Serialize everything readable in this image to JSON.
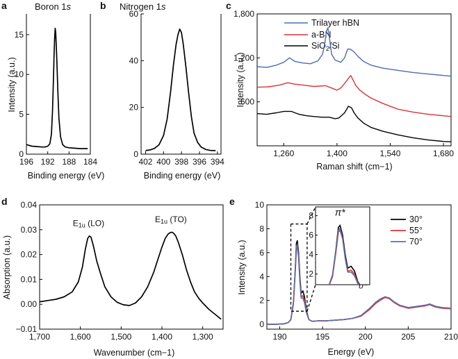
{
  "figure": {
    "panel_labels": [
      "a",
      "b",
      "c",
      "d",
      "e"
    ]
  },
  "chart_data": [
    {
      "panel": "a",
      "type": "line",
      "title_text": "Boron 1",
      "title_ital": "s",
      "xlabel": "Binding energy (eV)",
      "ylabel": "Intensity (a.u.)",
      "xlim": [
        196,
        184
      ],
      "ylim": [
        0,
        17.6
      ],
      "xticks": [
        196,
        192,
        188,
        184
      ],
      "xtick_labels": [
        "196",
        "192",
        "188",
        "184"
      ],
      "yticks": [
        0,
        5,
        10,
        15
      ],
      "ytick_labels": [
        "0",
        "5",
        "10",
        "15"
      ],
      "series": [
        {
          "name": "Boron 1s",
          "color": "#000000",
          "x": [
            196,
            195,
            194,
            193,
            192.5,
            192,
            191.6,
            191.3,
            191.1,
            190.9,
            190.8,
            190.7,
            190.6,
            190.5,
            190.3,
            190.1,
            189.9,
            189.6,
            189.2,
            188.7,
            188,
            187,
            186,
            185,
            184.5
          ],
          "y": [
            1.2,
            1.0,
            0.95,
            0.9,
            0.9,
            1.0,
            1.3,
            2.5,
            5.5,
            10,
            12.8,
            14.5,
            15.8,
            15.2,
            12,
            8,
            4.5,
            2.2,
            1.2,
            0.9,
            0.8,
            0.75,
            0.7,
            0.7,
            0.7
          ]
        }
      ]
    },
    {
      "panel": "b",
      "type": "line",
      "title_text": "Nitrogen 1",
      "title_ital": "s",
      "xlabel": "Binding energy (eV)",
      "ylabel": "",
      "xlim": [
        402.5,
        393.6
      ],
      "ylim": [
        0,
        60
      ],
      "xticks": [
        402,
        400,
        398,
        396,
        394
      ],
      "xtick_labels": [
        "402",
        "400",
        "398",
        "396",
        "394"
      ],
      "yticks": [
        0,
        20,
        40,
        60
      ],
      "ytick_labels": [
        "0",
        "20",
        "40",
        "60"
      ],
      "series": [
        {
          "name": "Nitrogen 1s",
          "color": "#000000",
          "x": [
            402,
            401.5,
            401,
            400.5,
            400,
            399.6,
            399.2,
            398.9,
            398.6,
            398.4,
            398.2,
            398,
            397.8,
            397.5,
            397.2,
            396.9,
            396.6,
            396.2,
            395.8,
            395.3,
            394.8,
            394.2
          ],
          "y": [
            1.5,
            1.8,
            2.5,
            4,
            8,
            15,
            27,
            38,
            47,
            51,
            53.5,
            52,
            47,
            37,
            26,
            16,
            9,
            5,
            3,
            2,
            1.6,
            1.5
          ]
        }
      ]
    },
    {
      "panel": "c",
      "type": "line",
      "xlabel": "Raman shift (cm−1)",
      "ylabel": "Intensity (a.u.)",
      "xlim": [
        1190,
        1700
      ],
      "ylim": [
        0,
        1800
      ],
      "xticks": [
        1260,
        1400,
        1540,
        1680
      ],
      "xtick_labels": [
        "1,260",
        "1,400",
        "1,540",
        "1,680"
      ],
      "yticks": [
        600,
        1200,
        1800
      ],
      "ytick_labels": [
        "600",
        "1,200",
        "1,800"
      ],
      "legend": {
        "position": "top-left",
        "labels": [
          "Trilayer hBN",
          "a-BN",
          "SiO",
          "2",
          "/Si"
        ]
      },
      "series": [
        {
          "name": "Trilayer hBN",
          "color": "#4a6bb5",
          "x": [
            1190,
            1215,
            1240,
            1260,
            1275,
            1290,
            1310,
            1330,
            1350,
            1362,
            1368,
            1372,
            1376,
            1380,
            1386,
            1395,
            1410,
            1420,
            1428,
            1435,
            1445,
            1455,
            1470,
            1490,
            1520,
            1560,
            1600,
            1640,
            1680,
            1700
          ],
          "y": [
            1080,
            1070,
            1100,
            1140,
            1200,
            1150,
            1130,
            1120,
            1160,
            1250,
            1400,
            1560,
            1610,
            1480,
            1250,
            1170,
            1140,
            1200,
            1320,
            1320,
            1280,
            1220,
            1150,
            1100,
            1060,
            1030,
            1000,
            980,
            960,
            950
          ]
        },
        {
          "name": "a-BN",
          "color": "#d93338",
          "x": [
            1190,
            1220,
            1250,
            1270,
            1290,
            1310,
            1340,
            1370,
            1390,
            1400,
            1410,
            1420,
            1430,
            1436,
            1442,
            1450,
            1460,
            1475,
            1490,
            1520,
            1560,
            1600,
            1640,
            1680,
            1700
          ],
          "y": [
            800,
            805,
            830,
            860,
            840,
            830,
            810,
            820,
            780,
            760,
            790,
            850,
            920,
            960,
            900,
            820,
            760,
            700,
            650,
            580,
            500,
            460,
            430,
            410,
            400
          ]
        },
        {
          "name": "SiO2/Si",
          "color": "#000000",
          "x": [
            1190,
            1215,
            1240,
            1260,
            1280,
            1300,
            1320,
            1340,
            1360,
            1380,
            1395,
            1405,
            1420,
            1430,
            1438,
            1445,
            1455,
            1470,
            1490,
            1520,
            1560,
            1600,
            1640,
            1680,
            1700
          ],
          "y": [
            440,
            430,
            450,
            470,
            470,
            430,
            410,
            400,
            390,
            390,
            370,
            380,
            450,
            540,
            520,
            450,
            380,
            310,
            250,
            200,
            150,
            110,
            80,
            60,
            55
          ]
        }
      ]
    },
    {
      "panel": "d",
      "type": "line",
      "xlabel": "Wavenumber (cm−1)",
      "ylabel": "Absorption (a.u.)",
      "xlim": [
        1700,
        1250
      ],
      "ylim": [
        -0.01,
        0.04
      ],
      "xticks": [
        1700,
        1600,
        1500,
        1400,
        1300
      ],
      "xtick_labels": [
        "1,700",
        "1,600",
        "1,500",
        "1,400",
        "1,300"
      ],
      "yticks": [
        -0.01,
        0,
        0.01,
        0.02,
        0.03,
        0.04
      ],
      "ytick_labels": [
        "−0.01",
        "0.00",
        "0.01",
        "0.02",
        "0.03",
        "0.04"
      ],
      "annotations": [
        {
          "label": "lo",
          "pre": "E",
          "sub": "1u",
          "post": " (LO)",
          "x": 1580,
          "y": 0.0315
        },
        {
          "label": "to",
          "pre": "E",
          "sub": "1u",
          "post": " (TO)",
          "x": 1378,
          "y": 0.033
        }
      ],
      "series": [
        {
          "name": "Absorption",
          "color": "#000000",
          "x": [
            1700,
            1680,
            1660,
            1640,
            1620,
            1605,
            1595,
            1588,
            1582,
            1578,
            1574,
            1568,
            1560,
            1550,
            1540,
            1525,
            1510,
            1495,
            1480,
            1465,
            1450,
            1435,
            1420,
            1410,
            1400,
            1392,
            1385,
            1380,
            1376,
            1372,
            1366,
            1360,
            1350,
            1340,
            1330,
            1320,
            1310,
            1300,
            1285,
            1270,
            1255
          ],
          "y": [
            0.001,
            0.0015,
            0.002,
            0.003,
            0.005,
            0.009,
            0.015,
            0.022,
            0.0265,
            0.0275,
            0.027,
            0.0235,
            0.0175,
            0.012,
            0.007,
            0.003,
            0.0008,
            -0.0002,
            -0.0005,
            0.0005,
            0.003,
            0.007,
            0.013,
            0.018,
            0.023,
            0.0265,
            0.0282,
            0.0288,
            0.029,
            0.0287,
            0.0275,
            0.025,
            0.02,
            0.014,
            0.009,
            0.005,
            0.0025,
            0.0005,
            -0.002,
            -0.004,
            -0.006
          ]
        }
      ]
    },
    {
      "panel": "e",
      "type": "line",
      "xlabel": "Energy (eV)",
      "ylabel": "Intensity (a.u.)",
      "xlim": [
        188.5,
        210
      ],
      "ylim": [
        -0.4,
        10
      ],
      "xticks": [
        190,
        195,
        200,
        205,
        210
      ],
      "xtick_labels": [
        "190",
        "195",
        "200",
        "205",
        "210"
      ],
      "yticks": [
        0,
        2,
        4,
        6,
        8,
        10
      ],
      "ytick_labels": [
        "0",
        "2",
        "4",
        "6",
        "8",
        "10"
      ],
      "legend": {
        "position": "top-right",
        "labels": [
          "30°",
          "55°",
          "70°"
        ]
      },
      "annotations": [
        {
          "label": "pi_star",
          "text": "π*",
          "x": 192.05,
          "y": 8.0
        },
        {
          "label": "sigma_star",
          "text": "σ*",
          "x": 199.7,
          "y": 3.0
        }
      ],
      "inset": {
        "xlim": [
          190.6,
          193.8
        ],
        "ylim": [
          0.9,
          8.9
        ],
        "yticks": [
          2,
          4,
          6,
          8
        ],
        "ytick_labels": [
          "2",
          "4",
          "6",
          "8"
        ],
        "box": {
          "x": [
            191.3,
            193.2
          ],
          "y": [
            1.1,
            8.4
          ]
        }
      },
      "series": [
        {
          "name": "30°",
          "color": "#000000",
          "x": [
            188.5,
            189.5,
            190.5,
            191.0,
            191.3,
            191.6,
            191.8,
            191.95,
            192.05,
            192.2,
            192.35,
            192.5,
            192.7,
            192.9,
            193.1,
            193.4,
            193.8,
            194.5,
            195.5,
            196.5,
            197.5,
            198.5,
            199.5,
            200.5,
            201.2,
            201.8,
            202.3,
            202.8,
            203.3,
            204,
            205,
            206,
            207,
            207.5,
            208.2,
            209,
            210
          ],
          "y": [
            0.0,
            0.0,
            0.05,
            0.15,
            0.4,
            1.8,
            4.5,
            6.8,
            7.0,
            6.0,
            4.0,
            2.6,
            2.8,
            2.3,
            1.2,
            0.4,
            0.25,
            0.3,
            0.3,
            0.35,
            0.4,
            0.5,
            0.7,
            1.3,
            1.8,
            2.1,
            2.3,
            2.2,
            1.9,
            1.6,
            1.4,
            1.5,
            1.6,
            1.7,
            1.5,
            1.4,
            1.35
          ]
        },
        {
          "name": "55°",
          "color": "#d93338",
          "x": [
            188.5,
            189.5,
            190.5,
            191.0,
            191.3,
            191.6,
            191.8,
            191.95,
            192.05,
            192.2,
            192.35,
            192.5,
            192.7,
            192.9,
            193.1,
            193.4,
            193.8,
            194.5,
            195.5,
            196.5,
            197.5,
            198.5,
            199.5,
            200.5,
            201.2,
            201.8,
            202.3,
            202.8,
            203.3,
            204,
            205,
            206,
            207,
            207.5,
            208.2,
            209,
            210
          ],
          "y": [
            0.0,
            0.0,
            0.05,
            0.15,
            0.4,
            1.7,
            4.2,
            6.3,
            6.5,
            5.6,
            3.7,
            2.3,
            2.4,
            2.0,
            1.1,
            0.4,
            0.25,
            0.3,
            0.3,
            0.35,
            0.4,
            0.5,
            0.7,
            1.25,
            1.75,
            2.05,
            2.25,
            2.15,
            1.85,
            1.55,
            1.35,
            1.45,
            1.55,
            1.65,
            1.45,
            1.35,
            1.3
          ]
        },
        {
          "name": "70°",
          "color": "#5b6fa8",
          "x": [
            188.5,
            189.5,
            190.5,
            191.0,
            191.3,
            191.6,
            191.8,
            191.95,
            192.05,
            192.2,
            192.35,
            192.5,
            192.7,
            192.9,
            193.1,
            193.4,
            193.8,
            194.5,
            195.5,
            196.5,
            197.5,
            198.5,
            199.5,
            200.5,
            201.2,
            201.8,
            202.3,
            202.8,
            203.3,
            204,
            205,
            206,
            207,
            207.5,
            208.2,
            209,
            210
          ],
          "y": [
            0.0,
            0.0,
            0.05,
            0.15,
            0.4,
            1.9,
            4.4,
            6.5,
            6.7,
            5.7,
            3.6,
            2.2,
            2.2,
            1.8,
            1.0,
            0.4,
            0.25,
            0.3,
            0.3,
            0.35,
            0.4,
            0.5,
            0.75,
            1.35,
            1.85,
            2.15,
            2.3,
            2.2,
            1.9,
            1.6,
            1.4,
            1.5,
            1.6,
            1.7,
            1.5,
            1.4,
            1.35
          ]
        }
      ]
    }
  ]
}
